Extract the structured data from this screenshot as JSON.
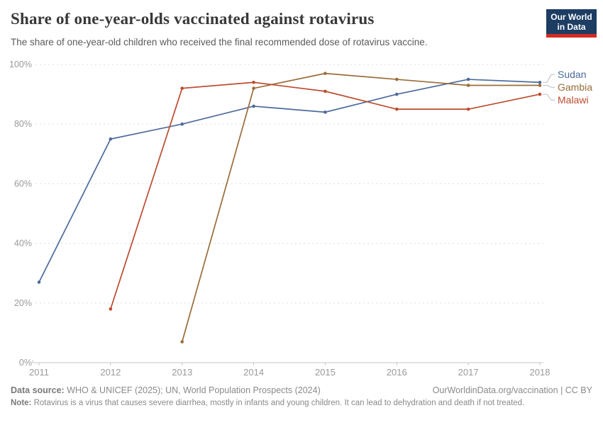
{
  "header": {
    "title": "Share of one-year-olds vaccinated against rotavirus",
    "subtitle": "The share of one-year-old children who received the final recommended dose of rotavirus vaccine.",
    "logo": {
      "line1": "Our World",
      "line2": "in Data",
      "bg_color": "#1d3d63",
      "accent_color": "#d42b21"
    }
  },
  "chart_data": {
    "type": "line",
    "title": "Share of one-year-olds vaccinated against rotavirus",
    "xlabel": "",
    "ylabel": "",
    "x": [
      2011,
      2012,
      2013,
      2014,
      2015,
      2016,
      2017,
      2018
    ],
    "xlim": [
      2011,
      2018
    ],
    "ylim": [
      0,
      100
    ],
    "yticks": [
      0,
      20,
      40,
      60,
      80,
      100
    ],
    "ytick_suffix": "%",
    "grid": "horizontal-dashed",
    "legend_position": "right-of-line-ends",
    "marker": "dot",
    "series": [
      {
        "name": "Sudan",
        "color": "#4c6a9c",
        "points": [
          [
            2011,
            27
          ],
          [
            2012,
            75
          ],
          [
            2013,
            80
          ],
          [
            2014,
            86
          ],
          [
            2015,
            84
          ],
          [
            2016,
            90
          ],
          [
            2017,
            95
          ],
          [
            2018,
            94
          ]
        ]
      },
      {
        "name": "Gambia",
        "color": "#996d39",
        "points": [
          [
            2013,
            7
          ],
          [
            2014,
            92
          ],
          [
            2015,
            97
          ],
          [
            2016,
            95
          ],
          [
            2017,
            93
          ],
          [
            2018,
            93
          ]
        ]
      },
      {
        "name": "Malawi",
        "color": "#bc4b2f",
        "points": [
          [
            2012,
            18
          ],
          [
            2013,
            92
          ],
          [
            2014,
            94
          ],
          [
            2015,
            91
          ],
          [
            2016,
            85
          ],
          [
            2017,
            85
          ],
          [
            2018,
            90
          ]
        ]
      }
    ]
  },
  "footer": {
    "datasource_label": "Data source:",
    "datasource_text": " WHO & UNICEF (2025); UN, World Population Prospects (2024)",
    "link": "OurWorldinData.org/vaccination | CC BY",
    "note_label": "Note:",
    "note_text": " Rotavirus is a virus that causes severe diarrhea, mostly in infants and young children. It can lead to dehydration and death if not treated."
  }
}
